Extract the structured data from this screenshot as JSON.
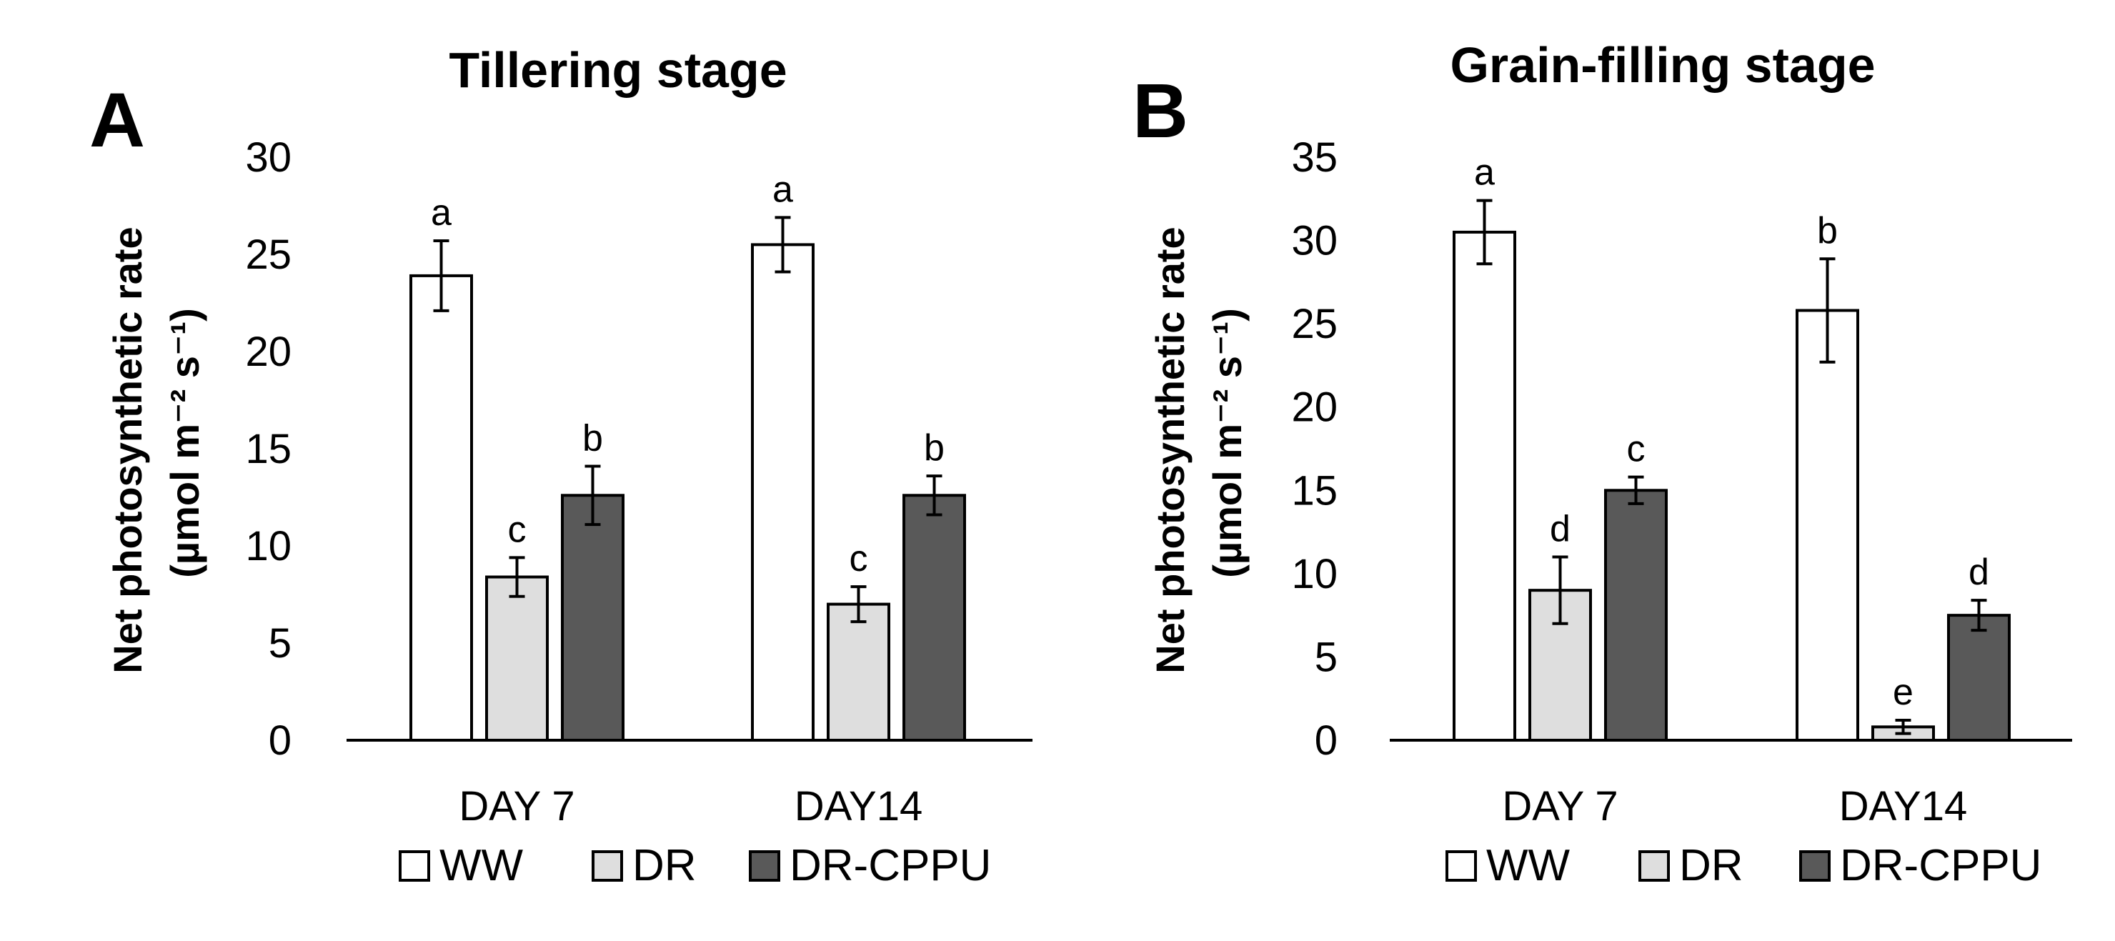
{
  "colors": {
    "WW": "#ffffff",
    "DR": "#dedede",
    "DR-CPPU": "#595959",
    "stroke": "#000000"
  },
  "chart_data": [
    {
      "type": "bar",
      "panel": "A",
      "title": "Tillering stage",
      "ylabel_line1": "Net photosynthetic rate",
      "ylabel_line2": "(µmol m⁻² s⁻¹)",
      "xlabel": "",
      "ylim": [
        0,
        30
      ],
      "yticks": [
        "0",
        "5",
        "10",
        "15",
        "20",
        "25",
        "30"
      ],
      "ytick_values": [
        0,
        5,
        10,
        15,
        20,
        25,
        30
      ],
      "categories": [
        "DAY 7",
        "DAY14"
      ],
      "series": [
        {
          "name": "WW",
          "values": [
            23.9,
            25.5
          ],
          "errors": [
            1.8,
            1.4
          ],
          "letters": [
            "a",
            "a"
          ]
        },
        {
          "name": "DR",
          "values": [
            8.4,
            7.0
          ],
          "errors": [
            1.0,
            0.9
          ],
          "letters": [
            "c",
            "c"
          ]
        },
        {
          "name": "DR-CPPU",
          "values": [
            12.6,
            12.6
          ],
          "errors": [
            1.5,
            1.0
          ],
          "letters": [
            "b",
            "b"
          ]
        }
      ],
      "legend": [
        "WW",
        "DR",
        "DR-CPPU"
      ],
      "legend_position": "bottom",
      "grid": false
    },
    {
      "type": "bar",
      "panel": "B",
      "title": "Grain-filling stage",
      "ylabel_line1": "Net photosynthetic rate",
      "ylabel_line2": "(µmol m⁻² s⁻¹)",
      "xlabel": "",
      "ylim": [
        0,
        35
      ],
      "yticks": [
        "0",
        "5",
        "10",
        "15",
        "20",
        "25",
        "30",
        "35"
      ],
      "ytick_values": [
        0,
        5,
        10,
        15,
        20,
        25,
        30,
        35
      ],
      "categories": [
        "DAY 7",
        "DAY14"
      ],
      "series": [
        {
          "name": "WW",
          "values": [
            30.5,
            25.8
          ],
          "errors": [
            1.9,
            3.1
          ],
          "letters": [
            "a",
            "b"
          ]
        },
        {
          "name": "DR",
          "values": [
            9.0,
            0.8
          ],
          "errors": [
            2.0,
            0.4
          ],
          "letters": [
            "d",
            "e"
          ]
        },
        {
          "name": "DR-CPPU",
          "values": [
            15.0,
            7.5
          ],
          "errors": [
            0.8,
            0.9
          ],
          "letters": [
            "c",
            "d"
          ]
        }
      ],
      "legend": [
        "WW",
        "DR",
        "DR-CPPU"
      ],
      "legend_position": "bottom",
      "grid": false
    }
  ]
}
